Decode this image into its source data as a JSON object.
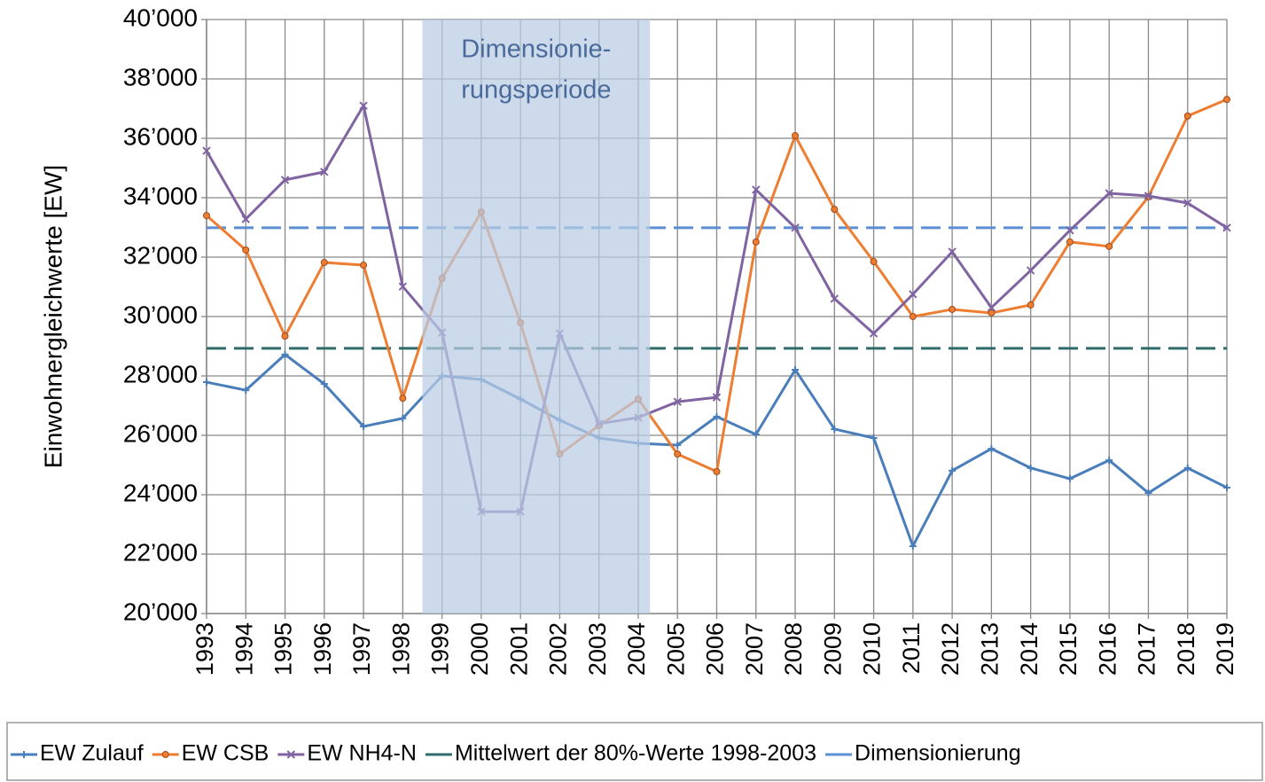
{
  "chart_data": {
    "type": "line",
    "y_label": "Einwohnergleichwerte [EW]",
    "x": [
      1993,
      1994,
      1995,
      1996,
      1997,
      1998,
      1999,
      2000,
      2001,
      2002,
      2003,
      2004,
      2005,
      2006,
      2007,
      2008,
      2009,
      2010,
      2011,
      2012,
      2013,
      2014,
      2015,
      2016,
      2017,
      2018,
      2019
    ],
    "xlim": [
      1993,
      2019
    ],
    "xticks": [
      1993,
      1994,
      1995,
      1996,
      1997,
      1998,
      1999,
      2000,
      2001,
      2002,
      2003,
      2004,
      2005,
      2006,
      2007,
      2008,
      2009,
      2010,
      2011,
      2012,
      2013,
      2014,
      2015,
      2016,
      2017,
      2018,
      2019
    ],
    "ylim": [
      20000,
      40000
    ],
    "yticks": [
      {
        "value": 20000,
        "label": "20’000"
      },
      {
        "value": 22000,
        "label": "22’000"
      },
      {
        "value": 24000,
        "label": "24’000"
      },
      {
        "value": 26000,
        "label": "26’000"
      },
      {
        "value": 28000,
        "label": "28’000"
      },
      {
        "value": 30000,
        "label": "30’000"
      },
      {
        "value": 32000,
        "label": "32’000"
      },
      {
        "value": 34000,
        "label": "34’000"
      },
      {
        "value": 36000,
        "label": "36’000"
      },
      {
        "value": 38000,
        "label": "38’000"
      },
      {
        "value": 40000,
        "label": "40’000"
      }
    ],
    "grid": true,
    "series": [
      {
        "name": "EW Zulauf",
        "color": "#4a7ebb",
        "marker": "plus",
        "values": [
          27790,
          27520,
          28720,
          27730,
          26300,
          26570,
          28000,
          27880,
          27220,
          26510,
          25910,
          25730,
          25670,
          26630,
          26030,
          28210,
          26210,
          25910,
          22270,
          24810,
          25550,
          24900,
          24540,
          25160,
          24060,
          24900,
          24240
        ]
      },
      {
        "name": "EW CSB",
        "color": "#ed7d31",
        "marker": "circle",
        "values": [
          33400,
          32240,
          29340,
          31820,
          31730,
          27250,
          31280,
          33520,
          29790,
          25370,
          26330,
          27220,
          25370,
          24780,
          32510,
          36090,
          33610,
          31850,
          30000,
          30240,
          30120,
          30390,
          32510,
          32360,
          34030,
          36750,
          37310
        ]
      },
      {
        "name": "EW NH4-N",
        "color": "#8064a2",
        "marker": "cross",
        "values": [
          35580,
          33280,
          34600,
          34870,
          37100,
          31010,
          29460,
          23430,
          23430,
          29430,
          26390,
          26600,
          27130,
          27280,
          34270,
          32990,
          30600,
          29430,
          30750,
          32180,
          30300,
          31550,
          32900,
          34150,
          34060,
          33820,
          32990
        ]
      }
    ],
    "hlines": [
      {
        "name": "Mittelwert der 80%-Werte 1998-2003",
        "color": "#2e6b6b",
        "value": 28930
      },
      {
        "name": "Dimensionierung",
        "color": "#5b8fd5",
        "value": 32990
      }
    ],
    "shade": {
      "label": [
        "Dimensionie-",
        "rungsperiode"
      ],
      "xlim": [
        1998.5,
        2004.3
      ],
      "color": "#b8cce4"
    }
  }
}
